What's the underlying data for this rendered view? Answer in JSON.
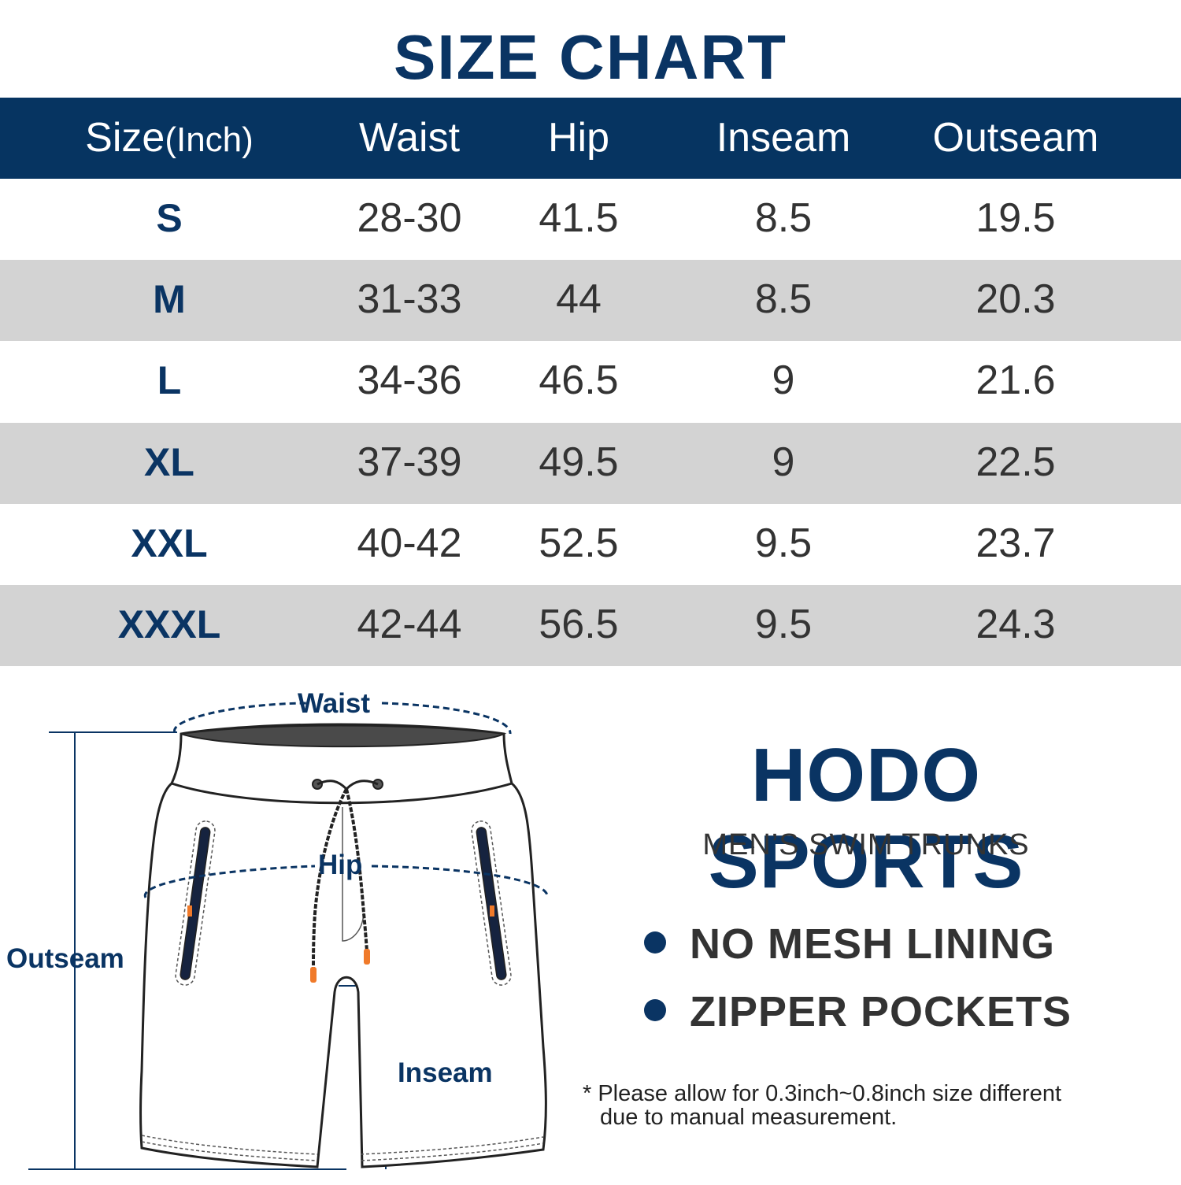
{
  "title": "SIZE CHART",
  "table": {
    "headers": {
      "size_main": "Size",
      "size_unit": "(Inch)",
      "waist": "Waist",
      "hip": "Hip",
      "inseam": "Inseam",
      "outseam": "Outseam"
    },
    "rows": [
      {
        "size": "S",
        "waist": "28-30",
        "hip": "41.5",
        "inseam": "8.5",
        "outseam": "19.5"
      },
      {
        "size": "M",
        "waist": "31-33",
        "hip": "44",
        "inseam": "8.5",
        "outseam": "20.3"
      },
      {
        "size": "L",
        "waist": "34-36",
        "hip": "46.5",
        "inseam": "9",
        "outseam": "21.6"
      },
      {
        "size": "XL",
        "waist": "37-39",
        "hip": "49.5",
        "inseam": "9",
        "outseam": "22.5"
      },
      {
        "size": "XXL",
        "waist": "40-42",
        "hip": "52.5",
        "inseam": "9.5",
        "outseam": "23.7"
      },
      {
        "size": "XXXL",
        "waist": "42-44",
        "hip": "56.5",
        "inseam": "9.5",
        "outseam": "24.3"
      }
    ]
  },
  "diagram": {
    "labels": {
      "waist": "Waist",
      "hip": "Hip",
      "outseam": "Outseam",
      "inseam": "Inseam"
    }
  },
  "brand": {
    "name": "HODO SPORTS",
    "subtitle": "MEN’S SWIM TRUNKS"
  },
  "features": [
    "NO MESH LINING",
    "ZIPPER POCKETS"
  ],
  "note": {
    "line1": "* Please allow for 0.3inch~0.8inch size different",
    "line2": "due to manual measurement."
  },
  "colors": {
    "navy": "#063461",
    "row_alt": "#d3d3d3",
    "text": "#333333",
    "drawcord_tip": "#f07a2a"
  }
}
